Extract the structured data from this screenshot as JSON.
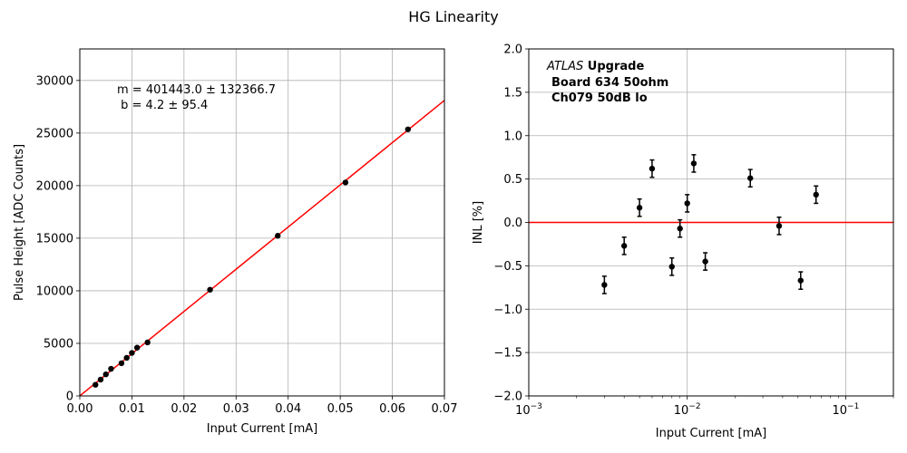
{
  "figure": {
    "title": "HG Linearity"
  },
  "chart_data": [
    {
      "type": "scatter",
      "title": "",
      "xlabel": "Input Current [mA]",
      "ylabel": "Pulse Height [ADC Counts]",
      "xlim": [
        0,
        0.07
      ],
      "ylim": [
        0,
        33000
      ],
      "xticks": [
        0,
        0.01,
        0.02,
        0.03,
        0.04,
        0.05,
        0.06,
        0.07
      ],
      "xtick_labels": [
        "0.00",
        "0.01",
        "0.02",
        "0.03",
        "0.04",
        "0.05",
        "0.06",
        "0.07"
      ],
      "yticks": [
        0,
        5000,
        10000,
        15000,
        20000,
        25000,
        30000
      ],
      "ytick_labels": [
        "0",
        "5000",
        "10000",
        "15000",
        "20000",
        "25000",
        "30000"
      ],
      "grid": true,
      "series": [
        {
          "kind": "points",
          "color": "#000000",
          "x": [
            0.003,
            0.004,
            0.005,
            0.006,
            0.008,
            0.009,
            0.01,
            0.011,
            0.013,
            0.025,
            0.038,
            0.051,
            0.063
          ],
          "y": [
            1060,
            1550,
            2050,
            2580,
            3110,
            3620,
            4090,
            4590,
            5090,
            10100,
            15230,
            20300,
            25350
          ]
        },
        {
          "kind": "fit_line",
          "color": "#ff0000",
          "slope": 401443.0,
          "intercept": 4.2
        }
      ],
      "annotations": {
        "fit_m": "m = 401443.0 ± 132366.7",
        "fit_b": " b = 4.2 ± 95.4"
      }
    },
    {
      "type": "scatter",
      "title": "",
      "xlabel": "Input Current [mA]",
      "ylabel": "INL [%]",
      "xscale": "log",
      "xlim": [
        0.001,
        0.2
      ],
      "ylim": [
        -2.0,
        2.0
      ],
      "xticks": [
        0.001,
        0.01,
        0.1
      ],
      "xtick_labels": [
        {
          "base": "10",
          "exp": "−3"
        },
        {
          "base": "10",
          "exp": "−2"
        },
        {
          "base": "10",
          "exp": "−1"
        }
      ],
      "yticks": [
        -2.0,
        -1.5,
        -1.0,
        -0.5,
        0.0,
        0.5,
        1.0,
        1.5,
        2.0
      ],
      "ytick_labels": [
        "−2.0",
        "−1.5",
        "−1.0",
        "−0.5",
        "0.0",
        "0.5",
        "1.0",
        "1.5",
        "2.0"
      ],
      "grid": true,
      "reference_line": {
        "y": 0,
        "color": "#ff0000"
      },
      "series": [
        {
          "kind": "points_with_errorbars",
          "color": "#000000",
          "x": [
            0.003,
            0.004,
            0.005,
            0.006,
            0.008,
            0.009,
            0.01,
            0.011,
            0.013,
            0.025,
            0.038,
            0.052,
            0.065
          ],
          "y": [
            -0.72,
            -0.27,
            0.17,
            0.62,
            -0.51,
            -0.07,
            0.22,
            0.68,
            -0.45,
            0.51,
            -0.04,
            -0.67,
            0.32
          ],
          "err": [
            0.1,
            0.1,
            0.1,
            0.1,
            0.1,
            0.1,
            0.1,
            0.1,
            0.1,
            0.1,
            0.1,
            0.1,
            0.1
          ]
        }
      ],
      "annotations": {
        "atlas": "ATLAS",
        "upgrade": " Upgrade",
        "board": "Board 634 50ohm",
        "channel": "Ch079 50dB lo"
      }
    }
  ]
}
